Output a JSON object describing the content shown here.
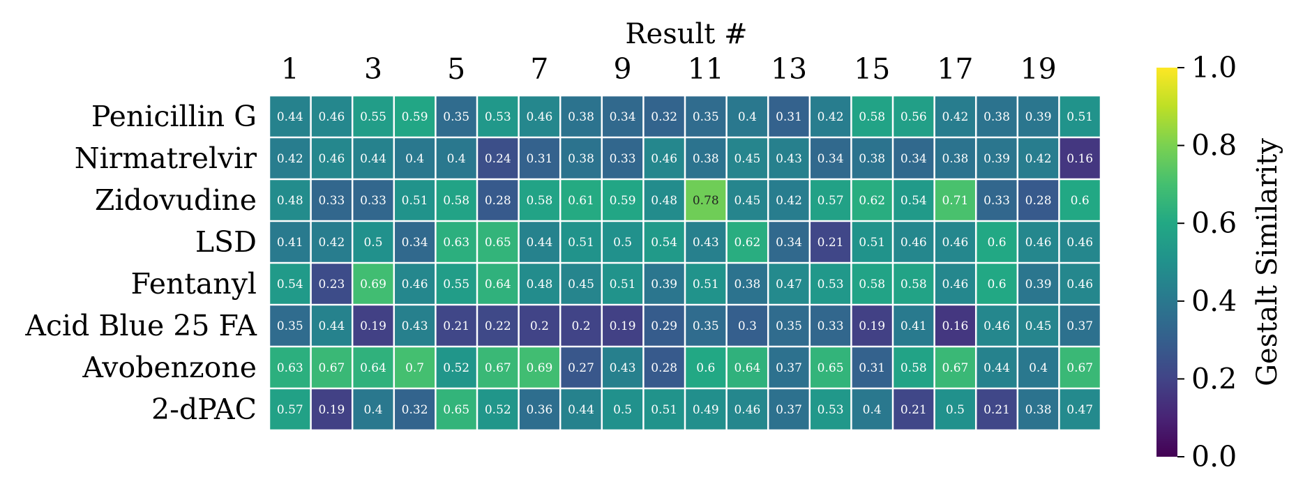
{
  "chart_data": {
    "type": "heatmap",
    "xlabel": "Result #",
    "xtick_labels": [
      "1",
      "3",
      "5",
      "7",
      "9",
      "11",
      "13",
      "15",
      "17",
      "19"
    ],
    "columns": [
      1,
      2,
      3,
      4,
      5,
      6,
      7,
      8,
      9,
      10,
      11,
      12,
      13,
      14,
      15,
      16,
      17,
      18,
      19,
      20
    ],
    "rows": [
      "Penicillin G",
      "Nirmatrelvir",
      "Zidovudine",
      "LSD",
      "Fentanyl",
      "Acid Blue 25 FA",
      "Avobenzone",
      "2-dPAC"
    ],
    "values": [
      [
        0.44,
        0.46,
        0.55,
        0.59,
        0.35,
        0.53,
        0.46,
        0.38,
        0.34,
        0.32,
        0.35,
        0.4,
        0.31,
        0.42,
        0.58,
        0.56,
        0.42,
        0.38,
        0.39,
        0.51
      ],
      [
        0.42,
        0.46,
        0.44,
        0.4,
        0.4,
        0.24,
        0.31,
        0.38,
        0.33,
        0.46,
        0.38,
        0.45,
        0.43,
        0.34,
        0.38,
        0.34,
        0.38,
        0.39,
        0.42,
        0.16
      ],
      [
        0.48,
        0.33,
        0.33,
        0.51,
        0.58,
        0.28,
        0.58,
        0.61,
        0.59,
        0.48,
        0.78,
        0.45,
        0.42,
        0.57,
        0.62,
        0.54,
        0.71,
        0.33,
        0.28,
        0.6
      ],
      [
        0.41,
        0.42,
        0.5,
        0.34,
        0.63,
        0.65,
        0.44,
        0.51,
        0.5,
        0.54,
        0.43,
        0.62,
        0.34,
        0.21,
        0.51,
        0.46,
        0.46,
        0.6,
        0.46,
        0.46
      ],
      [
        0.54,
        0.23,
        0.69,
        0.46,
        0.55,
        0.64,
        0.48,
        0.45,
        0.51,
        0.39,
        0.51,
        0.38,
        0.47,
        0.53,
        0.58,
        0.58,
        0.46,
        0.6,
        0.39,
        0.46
      ],
      [
        0.35,
        0.44,
        0.19,
        0.43,
        0.21,
        0.22,
        0.2,
        0.2,
        0.19,
        0.29,
        0.35,
        0.3,
        0.35,
        0.33,
        0.19,
        0.41,
        0.16,
        0.46,
        0.45,
        0.37
      ],
      [
        0.63,
        0.67,
        0.64,
        0.7,
        0.52,
        0.67,
        0.69,
        0.27,
        0.43,
        0.28,
        0.6,
        0.64,
        0.37,
        0.65,
        0.31,
        0.58,
        0.67,
        0.44,
        0.4,
        0.67
      ],
      [
        0.57,
        0.19,
        0.4,
        0.32,
        0.65,
        0.52,
        0.36,
        0.44,
        0.5,
        0.51,
        0.49,
        0.46,
        0.37,
        0.53,
        0.4,
        0.21,
        0.5,
        0.21,
        0.38,
        0.47
      ]
    ],
    "colormap": "viridis",
    "vmin": 0.0,
    "vmax": 1.0,
    "colorbar": {
      "label": "Gestalt Similarity",
      "tick_labels": [
        "0.0",
        "0.2",
        "0.4",
        "0.6",
        "0.8",
        "1.0"
      ]
    }
  }
}
